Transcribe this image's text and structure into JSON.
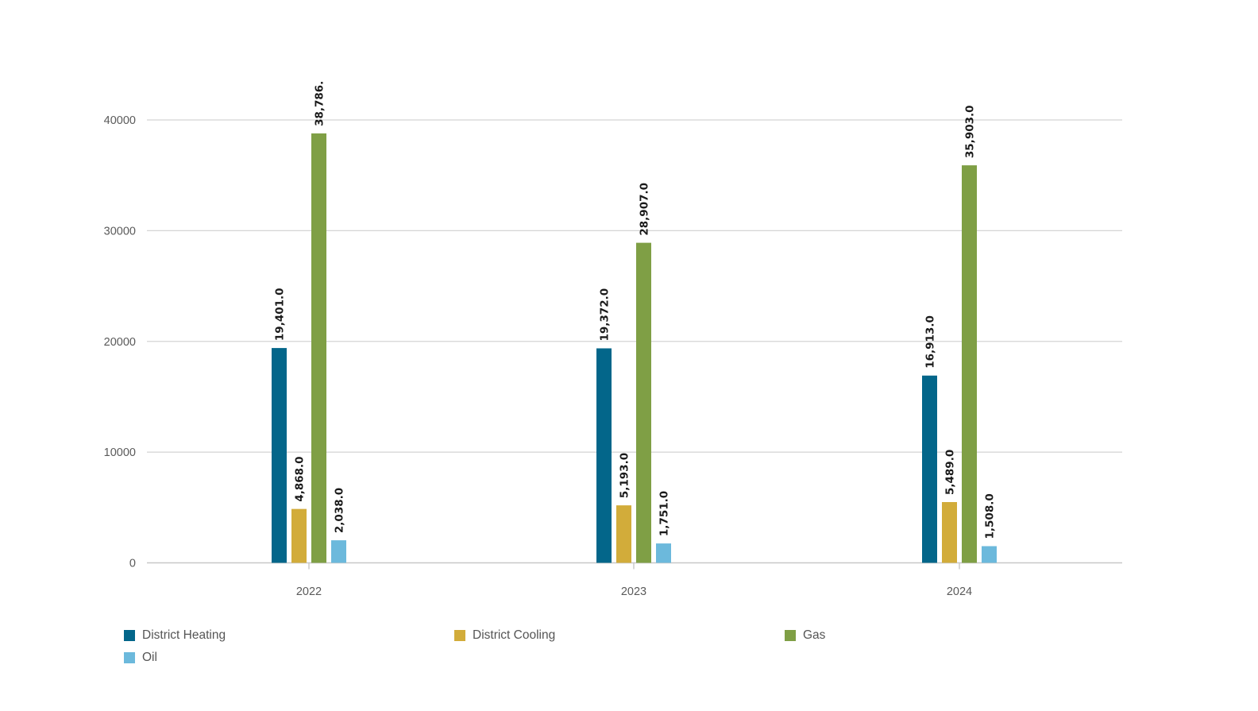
{
  "chart_data": {
    "type": "bar",
    "title": "",
    "xlabel": "",
    "ylabel": "",
    "categories": [
      "2022",
      "2023",
      "2024"
    ],
    "ylim": [
      0,
      40000
    ],
    "yticks": [
      "0",
      "10000",
      "20000",
      "30000",
      "40000"
    ],
    "grid": true,
    "legend_position": "bottom-left",
    "series": [
      {
        "name": "District Heating",
        "color": "#03668a",
        "values": [
          19401,
          19372,
          16913
        ],
        "labels": [
          "19,401.0",
          "19,372.0",
          "16,913.0"
        ]
      },
      {
        "name": "District Cooling",
        "color": "#d2ac3a",
        "values": [
          4868,
          5193,
          5489
        ],
        "labels": [
          "4,868.0",
          "5,193.0",
          "5,489.0"
        ]
      },
      {
        "name": "Gas",
        "color": "#7f9f45",
        "values": [
          38786,
          28907,
          35903
        ],
        "labels": [
          "38,786.",
          "28,907.0",
          "35,903.0"
        ]
      },
      {
        "name": "Oil",
        "color": "#6cb9dc",
        "values": [
          2038,
          1751,
          1508
        ],
        "labels": [
          "2,038.0",
          "1,751.0",
          "1,508.0"
        ]
      }
    ]
  }
}
